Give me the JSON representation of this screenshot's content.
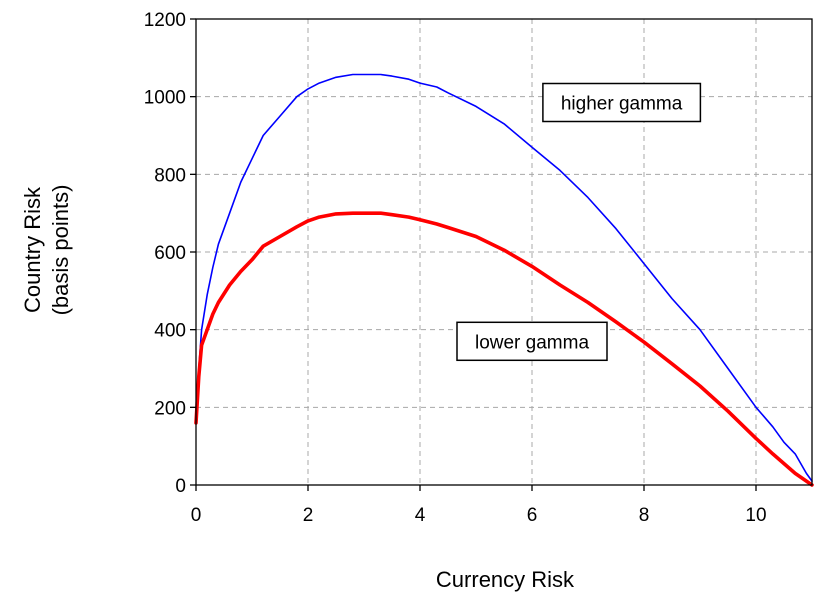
{
  "chart_data": {
    "type": "line",
    "title": "",
    "xlabel": "Currency Risk",
    "ylabel_lines": [
      "Country Risk",
      "(basis points)"
    ],
    "xlim": [
      0,
      11
    ],
    "ylim": [
      0,
      1200
    ],
    "xticks": [
      0,
      2,
      4,
      6,
      8,
      10
    ],
    "yticks": [
      0,
      200,
      400,
      600,
      800,
      1000,
      1200
    ],
    "grid": true,
    "series": [
      {
        "color": "#0000ff",
        "x": [
          0,
          0.05,
          0.1,
          0.2,
          0.3,
          0.4,
          0.6,
          0.8,
          1.0,
          1.2,
          1.5,
          1.8,
          2.0,
          2.2,
          2.5,
          2.8,
          3.0,
          3.3,
          3.5,
          3.8,
          4.0,
          4.3,
          4.5,
          5.0,
          5.5,
          6.0,
          6.5,
          7.0,
          7.5,
          8.0,
          8.5,
          9.0,
          9.5,
          10.0,
          10.3,
          10.5,
          10.7,
          10.9,
          11.0
        ],
        "y": [
          190,
          300,
          400,
          490,
          560,
          620,
          700,
          780,
          840,
          900,
          950,
          1000,
          1020,
          1035,
          1050,
          1057,
          1057,
          1057,
          1053,
          1045,
          1035,
          1025,
          1010,
          975,
          930,
          870,
          810,
          740,
          660,
          570,
          480,
          400,
          300,
          200,
          150,
          110,
          80,
          30,
          10
        ]
      },
      {
        "color": "#ff0000",
        "x": [
          0,
          0.05,
          0.1,
          0.2,
          0.3,
          0.4,
          0.6,
          0.8,
          1.0,
          1.2,
          1.5,
          1.8,
          2.0,
          2.2,
          2.5,
          2.8,
          3.0,
          3.3,
          3.5,
          3.8,
          4.0,
          4.3,
          4.5,
          5.0,
          5.5,
          6.0,
          6.5,
          7.0,
          7.5,
          8.0,
          8.5,
          9.0,
          9.5,
          10.0,
          10.3,
          10.5,
          10.7,
          10.9,
          11.0
        ],
        "y": [
          160,
          280,
          360,
          400,
          440,
          470,
          515,
          550,
          580,
          615,
          640,
          665,
          680,
          690,
          698,
          700,
          700,
          700,
          696,
          690,
          683,
          672,
          663,
          640,
          605,
          563,
          515,
          470,
          420,
          368,
          312,
          255,
          190,
          120,
          80,
          55,
          30,
          10,
          0
        ]
      }
    ],
    "annotations": [
      {
        "text": "higher gamma",
        "x": 7.6,
        "y": 985
      },
      {
        "text": "lower gamma",
        "x": 6.0,
        "y": 370
      }
    ]
  }
}
